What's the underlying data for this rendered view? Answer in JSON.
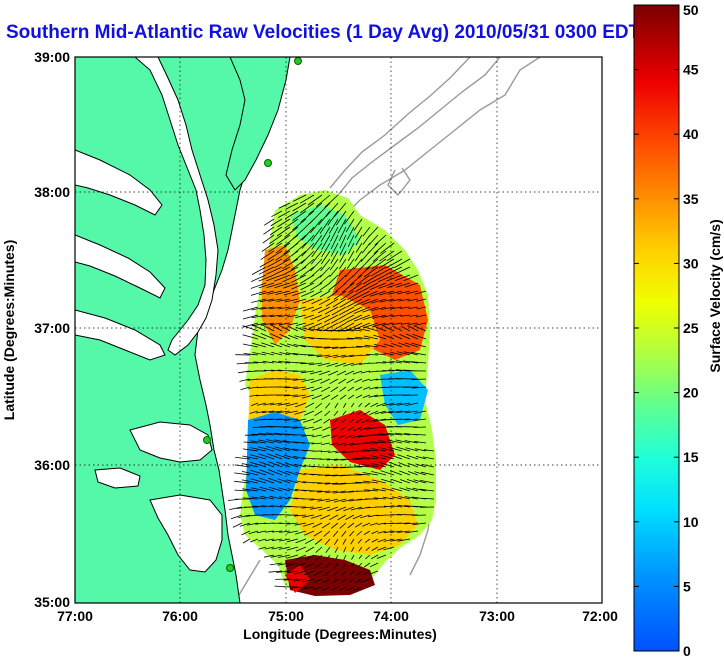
{
  "title": "Southern Mid-Atlantic Raw Velocities (1 Day Avg) 2010/05/31 0300 EDT",
  "x_axis": {
    "label": "Longitude (Degrees:Minutes)",
    "ticks": [
      "77:00",
      "76:00",
      "75:00",
      "74:00",
      "73:00",
      "72:00"
    ]
  },
  "y_axis": {
    "label": "Latitude (Degrees:Minutes)",
    "ticks": [
      "39:00",
      "38:00",
      "37:00",
      "36:00",
      "35:00"
    ]
  },
  "colorbar": {
    "label": "Surface Velocity (cm/s)",
    "ticks": [
      "50",
      "45",
      "40",
      "35",
      "30",
      "25",
      "20",
      "15",
      "10",
      "5",
      "0"
    ],
    "min": 0,
    "max": 50,
    "colormap": "jet"
  },
  "colors": {
    "land": "#55f7a8",
    "coast": "#000000",
    "bathymetry": "#9a9a9a",
    "title": "#1010e0",
    "station": "#22cc22"
  },
  "map_extent": {
    "lon": [
      -77,
      -72
    ],
    "lat": [
      35,
      39
    ]
  },
  "grid": true
}
